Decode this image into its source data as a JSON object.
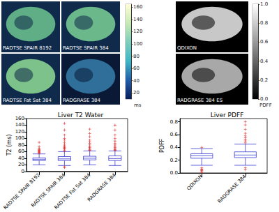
{
  "images": {
    "panels": [
      {
        "tiles": [
          "RADTSE SPAIR 8192",
          "RADTSE SPAIR 384",
          "RADTSE Fat Sat 384",
          "RADGRASE 384"
        ],
        "colorbar": {
          "label": "ms",
          "range": [
            10,
            165
          ],
          "ticks": [
            20,
            40,
            60,
            80,
            100,
            120,
            140,
            160
          ],
          "colors": [
            "#081d58",
            "#225ea8",
            "#41b6c4",
            "#7fcdbb",
            "#c7e9b4",
            "#ffffd9"
          ]
        }
      },
      {
        "tiles": [
          "QDIXON",
          "RADGRASE 384 ES"
        ],
        "colorbar": {
          "label": "PDFF",
          "range": [
            0,
            1
          ],
          "ticks": [
            {
              "value": 0,
              "label": "0.0"
            },
            0.2,
            0.4,
            0.6,
            0.8,
            {
              "value": 1,
              "label": "1.0"
            }
          ],
          "colors": [
            "#000000",
            "#ffffff"
          ]
        }
      }
    ]
  },
  "chart_data": [
    {
      "type": "boxplot",
      "title": "Liver T2 Water",
      "ylabel": "T2 (ms)",
      "grid": false,
      "categories": [
        "RADTSE SPAIR 8192",
        "RADTSE SPAIR 384",
        "RADTSE Fat Sat 384",
        "RADGRASE 384"
      ],
      "ylim": [
        0,
        160
      ],
      "yticks": [
        0,
        20,
        40,
        60,
        80,
        100,
        120,
        140,
        160
      ],
      "series": [
        {
          "type": "boxplot",
          "color": "#3a3ad0",
          "values": [
            [
              20,
              33,
              37,
              41,
              53
            ],
            [
              18,
              33,
              38,
              45,
              60
            ],
            [
              20,
              35,
              40,
              46,
              62
            ],
            [
              18,
              33,
              39,
              47,
              62
            ]
          ]
        },
        {
          "type": "scatter",
          "color": "#e03030",
          "marker": "plus",
          "values": [
            [
              55,
              57,
              58,
              60,
              62,
              64,
              66,
              70,
              75,
              88
            ],
            [
              12,
              14,
              62,
              65,
              68,
              70,
              72,
              75,
              78,
              82,
              88,
              95,
              100,
              110,
              125,
              145
            ],
            [
              64,
              66,
              70,
              72,
              75,
              80,
              85,
              90,
              95,
              105,
              115,
              128
            ],
            [
              64,
              66,
              68,
              72,
              76,
              80,
              85,
              92,
              100,
              110,
              125,
              140
            ]
          ]
        }
      ]
    },
    {
      "type": "boxplot",
      "title": "Liver PDFF",
      "ylabel": "PDFF",
      "grid": false,
      "categories": [
        "QDIXON",
        "RADGRASE 384"
      ],
      "ylim": [
        0,
        0.85
      ],
      "yticks": [
        {
          "value": 0,
          "label": "0.0"
        },
        0.2,
        0.4,
        0.6,
        0.8
      ],
      "series": [
        {
          "type": "boxplot",
          "color": "#3a3ad0",
          "values": [
            [
              0.12,
              0.23,
              0.27,
              0.3,
              0.38
            ],
            [
              0.12,
              0.24,
              0.28,
              0.33,
              0.45
            ]
          ]
        },
        {
          "type": "scatter",
          "color": "#e03030",
          "marker": "plus",
          "values": [
            [
              0.01,
              0.02,
              0.04,
              0.05,
              0.06,
              0.08,
              0.4
            ],
            [
              0.05,
              0.08,
              0.47,
              0.5,
              0.52,
              0.55,
              0.58,
              0.62,
              0.68,
              0.75,
              0.8
            ]
          ]
        }
      ]
    }
  ]
}
